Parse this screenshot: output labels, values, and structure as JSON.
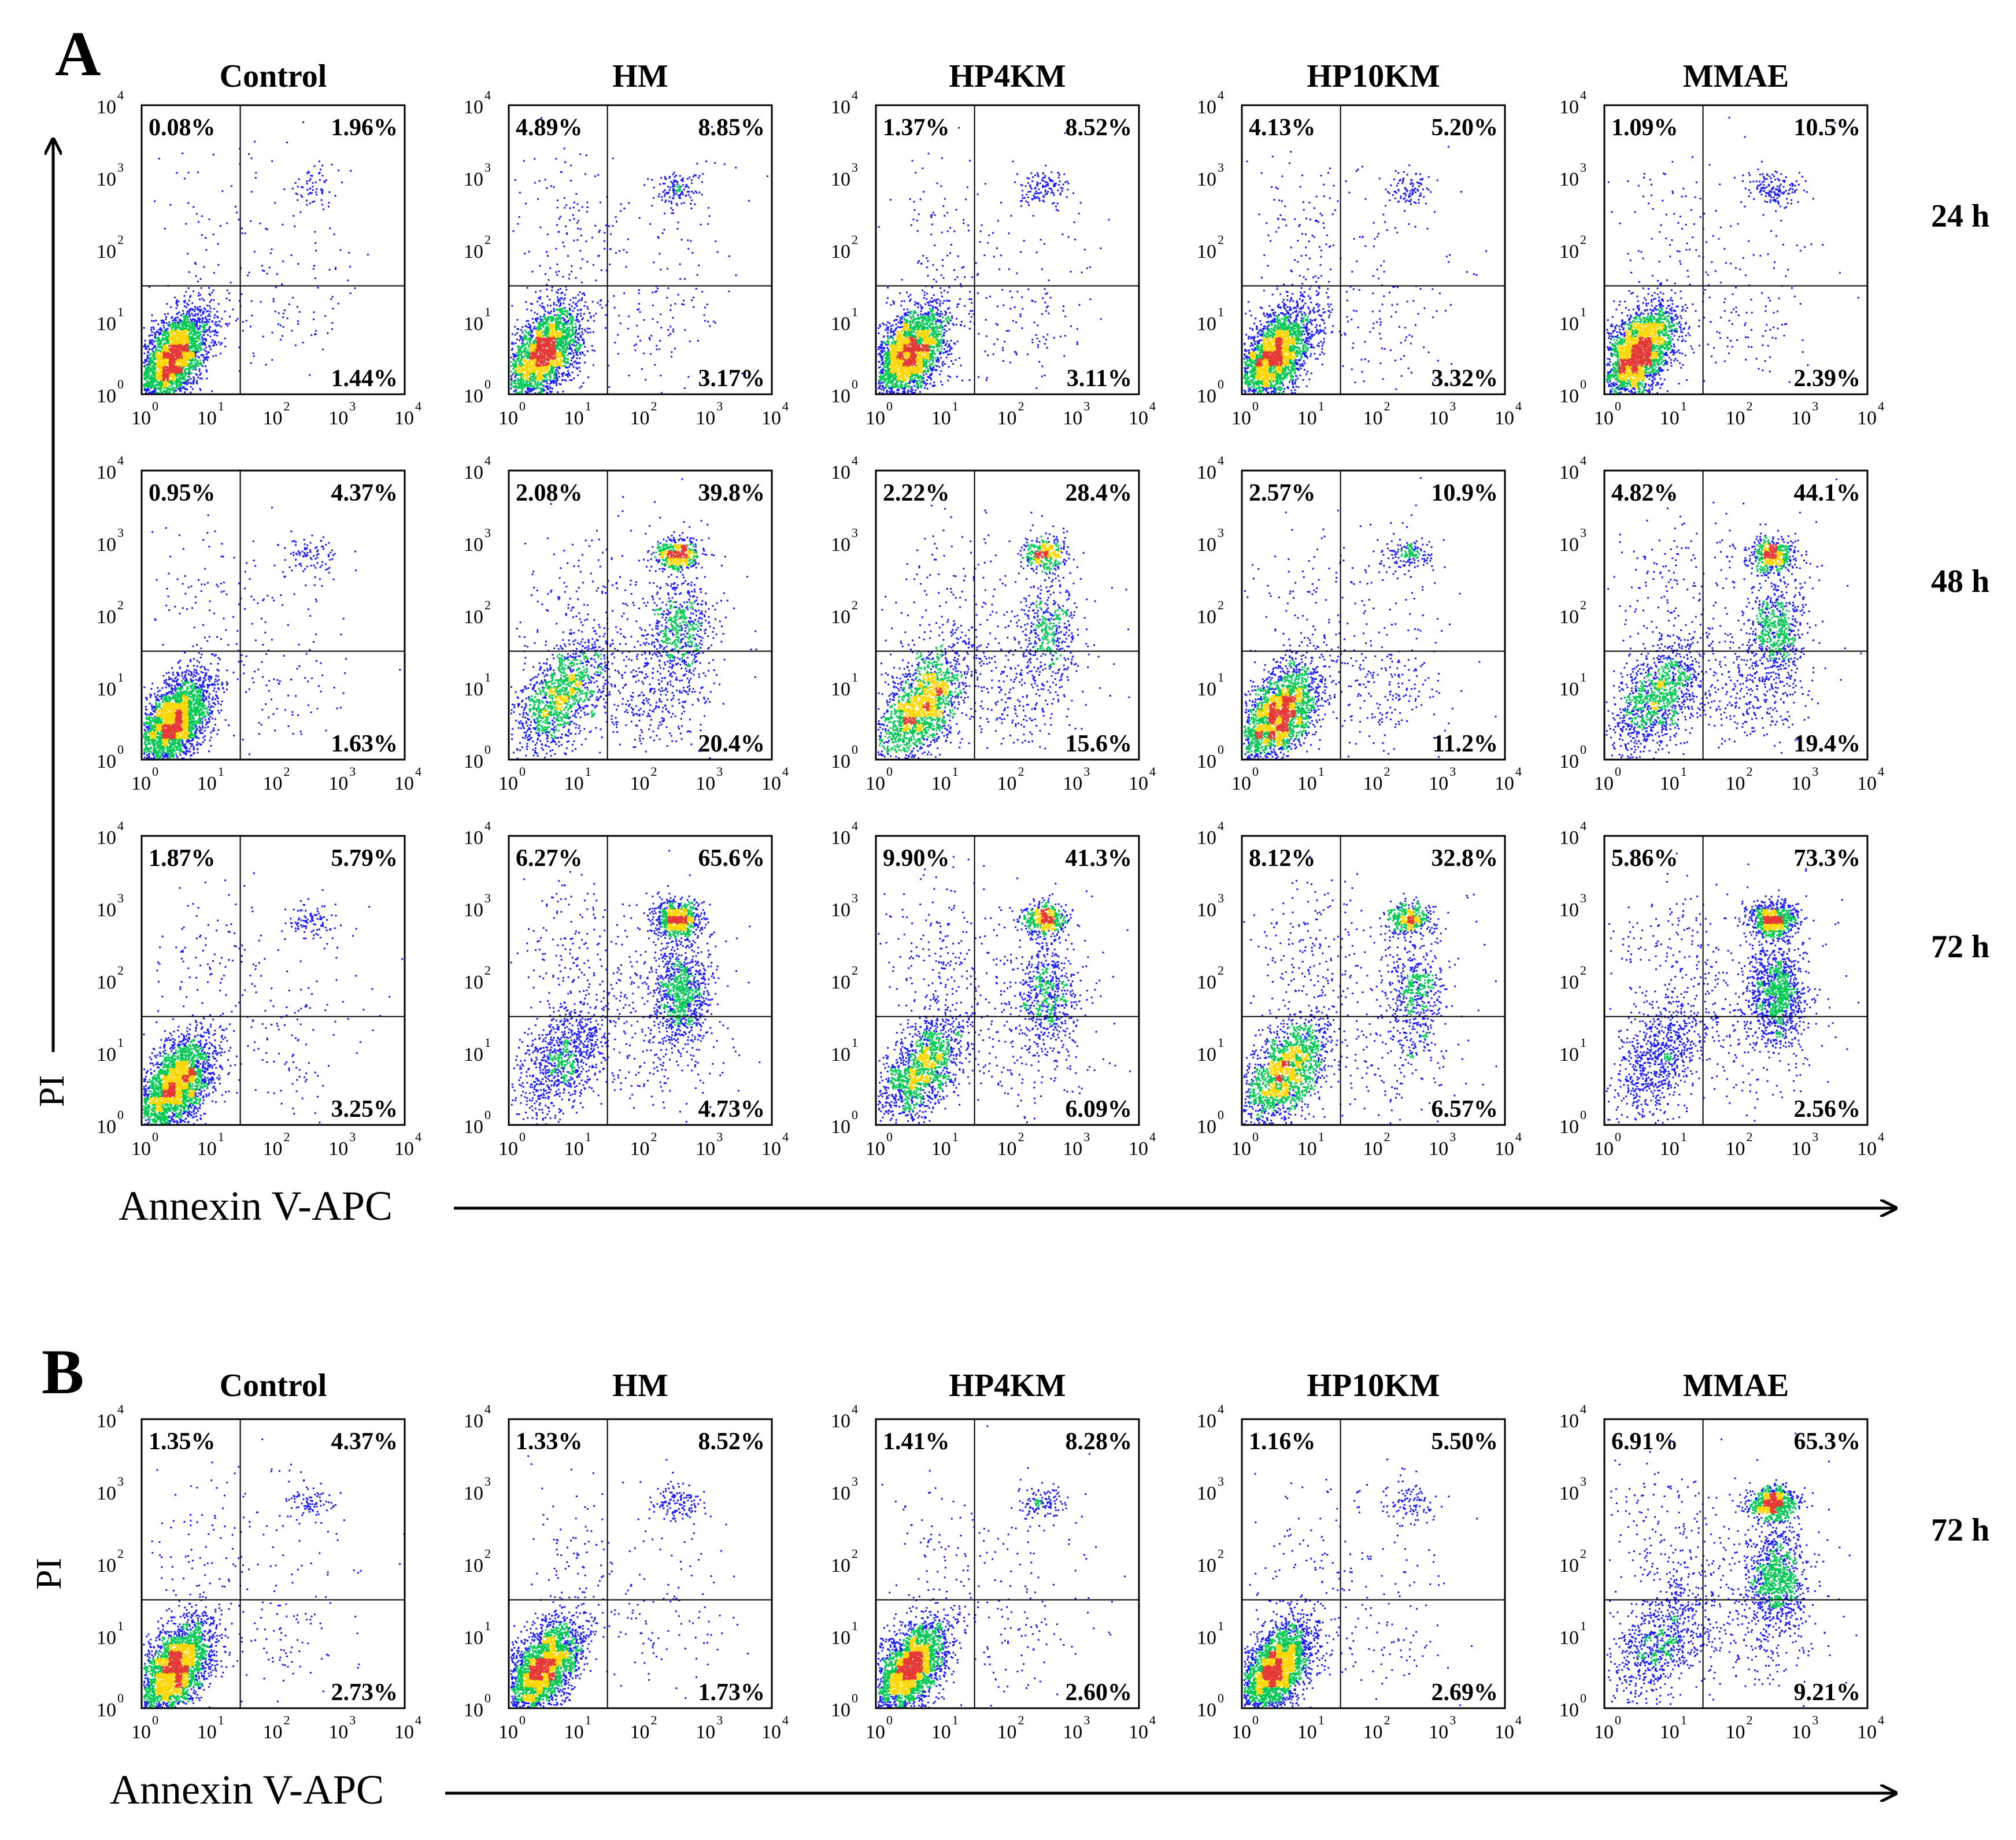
{
  "figure": {
    "panel_a_label": "A",
    "panel_b_label": "B",
    "y_axis_label": "PI",
    "x_axis_label": "Annexin V-APC",
    "tick_base": "10",
    "tick_exponents": [
      "0",
      "1",
      "2",
      "3",
      "4"
    ],
    "colors": {
      "low": "#1a1aff",
      "mid": "#00c853",
      "high": "#ffd600",
      "peak": "#e53935"
    }
  },
  "chart_data": [
    {
      "type": "scatter",
      "panel": "A",
      "columns": [
        "Control",
        "HM",
        "HP4KM",
        "HP10KM",
        "MMAE"
      ],
      "rows": [
        "24 h",
        "48 h",
        "72 h"
      ],
      "xlabel": "Annexin V-APC",
      "ylabel": "PI",
      "xlim": [
        1,
        10000
      ],
      "ylim": [
        1,
        10000
      ],
      "log_scale": true,
      "quadrant_labels_order": [
        "upper-left",
        "upper-right",
        "lower-right"
      ],
      "quadrants": [
        [
          [
            "0.08%",
            "1.96%",
            "1.44%"
          ],
          [
            "4.89%",
            "8.85%",
            "3.17%"
          ],
          [
            "1.37%",
            "8.52%",
            "3.11%"
          ],
          [
            "4.13%",
            "5.20%",
            "3.32%"
          ],
          [
            "1.09%",
            "10.5%",
            "2.39%"
          ]
        ],
        [
          [
            "0.95%",
            "4.37%",
            "1.63%"
          ],
          [
            "2.08%",
            "39.8%",
            "20.4%"
          ],
          [
            "2.22%",
            "28.4%",
            "15.6%"
          ],
          [
            "2.57%",
            "10.9%",
            "11.2%"
          ],
          [
            "4.82%",
            "44.1%",
            "19.4%"
          ]
        ],
        [
          [
            "1.87%",
            "5.79%",
            "3.25%"
          ],
          [
            "6.27%",
            "65.6%",
            "4.73%"
          ],
          [
            "9.90%",
            "41.3%",
            "6.09%"
          ],
          [
            "8.12%",
            "32.8%",
            "6.57%"
          ],
          [
            "5.86%",
            "73.3%",
            "2.56%"
          ]
        ]
      ]
    },
    {
      "type": "scatter",
      "panel": "B",
      "columns": [
        "Control",
        "HM",
        "HP4KM",
        "HP10KM",
        "MMAE"
      ],
      "rows": [
        "72 h"
      ],
      "xlabel": "Annexin V-APC",
      "ylabel": "PI",
      "xlim": [
        1,
        10000
      ],
      "ylim": [
        1,
        10000
      ],
      "log_scale": true,
      "quadrant_labels_order": [
        "upper-left",
        "upper-right",
        "lower-right"
      ],
      "quadrants": [
        [
          [
            "1.35%",
            "4.37%",
            "2.73%"
          ],
          [
            "1.33%",
            "8.52%",
            "1.73%"
          ],
          [
            "1.41%",
            "8.28%",
            "2.60%"
          ],
          [
            "1.16%",
            "5.50%",
            "2.69%"
          ],
          [
            "6.91%",
            "65.3%",
            "9.21%"
          ]
        ]
      ]
    }
  ]
}
